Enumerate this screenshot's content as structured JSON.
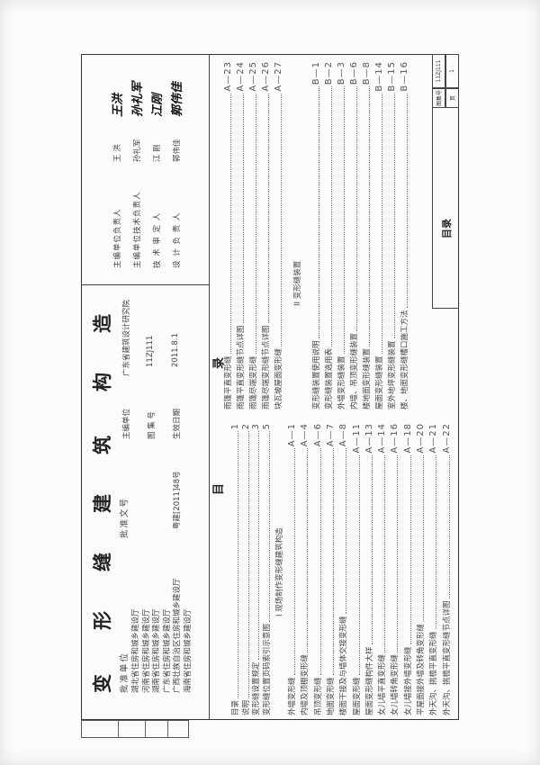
{
  "header": {
    "title_chars": [
      "变",
      "形",
      "缝",
      "建",
      "筑",
      "构",
      "造"
    ],
    "approval_unit_label": "批准单位",
    "approval_units": [
      "湖北省住房和城乡建设厅",
      "河南省住房和城乡建设厅",
      "湖南省住房和城乡建设厅",
      "广东省住房和城乡建设厅",
      "广西壮族自治区住房和城乡建设厅",
      "海南省住房和城乡建设厅"
    ],
    "approval_doc_label": "批准文号",
    "approval_doc_value": "粤建[2011]48号",
    "editor_unit_label": "主编单位",
    "editor_unit_value": "广东省建筑设计研究院",
    "atlas_no_label": "图 集 号",
    "atlas_no_value": "11ZJ111",
    "effective_date_label": "生效日期",
    "effective_date_value": "2011.8.1",
    "signatories": [
      {
        "role": "主编单位负责人",
        "name": "王  洪",
        "signature": "王洪"
      },
      {
        "role": "主编单位技术负责人",
        "name": "孙礼军",
        "signature": "孙礼军"
      },
      {
        "role": "技 术 审 定 人",
        "name": "江  刚",
        "signature": "江刚"
      },
      {
        "role": "设 计 负 责 人",
        "name": "郭伟佳",
        "signature": "郭伟佳"
      }
    ]
  },
  "toc": {
    "title_left": "目",
    "title_right": "录",
    "front": [
      {
        "label": "目录",
        "page": "1"
      },
      {
        "label": "说明",
        "page": "2"
      },
      {
        "label": "变形缝设置规定",
        "page": "3"
      },
      {
        "label": "变形缝位置页码索引示意图",
        "page": "5"
      }
    ],
    "section1_heading": "I 现场制作变形缝建筑构造",
    "section1": [
      {
        "label": "外墙变形缝",
        "page": "A—1"
      },
      {
        "label": "内墙及顶棚变形缝",
        "page": "A—4"
      },
      {
        "label": "吊顶变形缝",
        "page": "A—6"
      },
      {
        "label": "地面变形缝",
        "page": "A—7"
      },
      {
        "label": "楼面干接及与墙体交接变形缝",
        "page": "A—8"
      },
      {
        "label": "屋面变形缝",
        "page": "A—11"
      },
      {
        "label": "屋面变形缝构件大样",
        "page": "A—13"
      },
      {
        "label": "女儿墙平直变形缝",
        "page": "A—14"
      },
      {
        "label": "女儿墙转角变形缝",
        "page": "A—16"
      },
      {
        "label": "女儿墙接外墙变形缝",
        "page": "A—18"
      },
      {
        "label": "平屋面接外墙及转角变形缝",
        "page": "A—20"
      },
      {
        "label": "外天沟、挑檐平直变形缝",
        "page": "A—21"
      },
      {
        "label": "外天沟、挑檐平直变形缝节点详图",
        "page": "A—22"
      },
      {
        "label": "雨篷平直变形缝",
        "page": "A—23"
      },
      {
        "label": "雨篷平直变形缝节点详图",
        "page": "A—24"
      },
      {
        "label": "雨篷尽端变形缝",
        "page": "A—25"
      },
      {
        "label": "雨篷尽端变形缝节点详图",
        "page": "A—26"
      },
      {
        "label": "块瓦坡屋面变形缝",
        "page": "A—27"
      }
    ],
    "section2_heading": "II 变形缝装置",
    "section2": [
      {
        "label": "变形缝装置使用说明",
        "page": "B—1"
      },
      {
        "label": "变形缝装置选用表",
        "page": "B—2"
      },
      {
        "label": "外墙变形缝装置",
        "page": "B—3"
      },
      {
        "label": "内墙、吊顶变形缝装置",
        "page": "B—6"
      },
      {
        "label": "楼地面变形缝装置",
        "page": "B—8"
      },
      {
        "label": "屋面变形缝装置",
        "page": "B—14"
      },
      {
        "label": "室外地坪变形缝装置",
        "page": "B—15"
      },
      {
        "label": "楼、地面变形缝槽口施工方法",
        "page": "B—16"
      }
    ]
  },
  "title_block": {
    "title": "目录",
    "atlas_no_label": "图集号",
    "atlas_no_value": "11ZJ111",
    "page_label": "页",
    "page_value": "1"
  }
}
